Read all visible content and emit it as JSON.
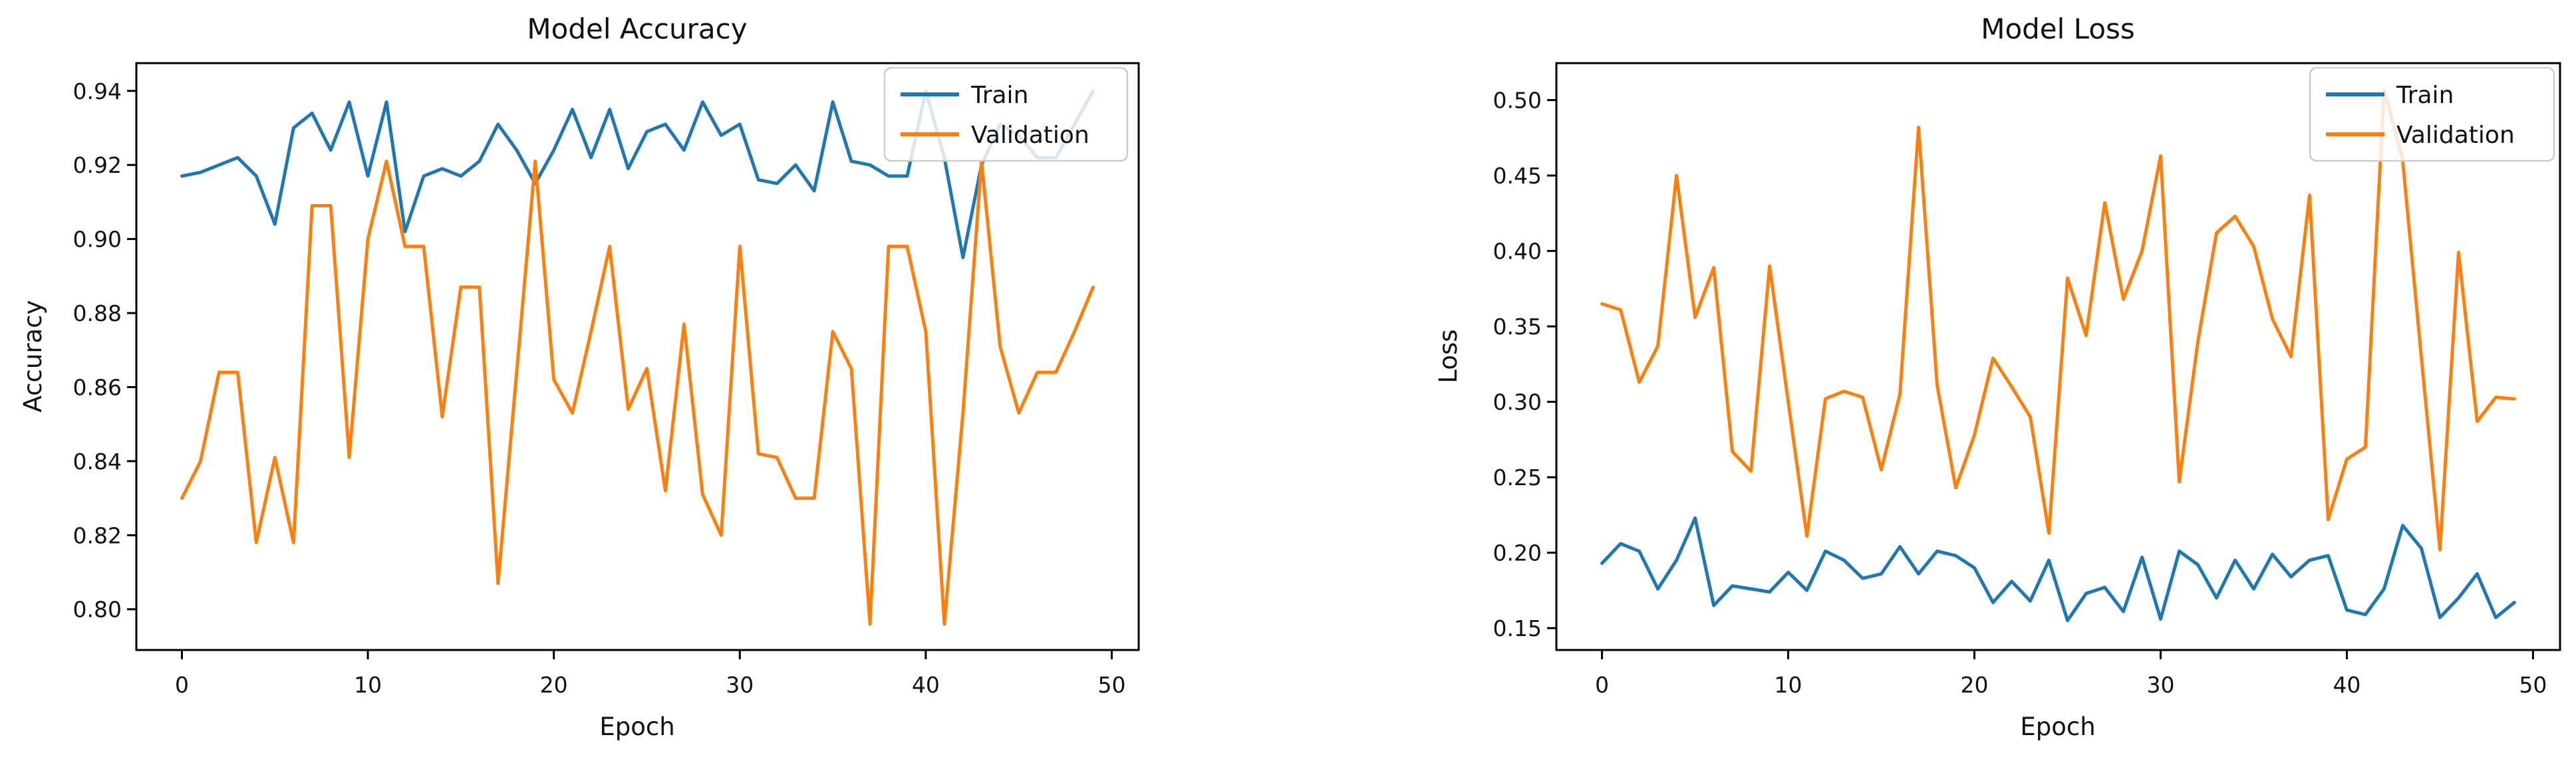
{
  "figure_titles": {
    "left": "Model Accuracy",
    "right": "Model Loss"
  },
  "chart_data": [
    {
      "type": "line",
      "title": "Model Accuracy",
      "xlabel": "Epoch",
      "ylabel": "Accuracy",
      "legend": [
        "Train",
        "Validation"
      ],
      "legend_position": "upper right",
      "grid": false,
      "xlim": [
        -2.45,
        51.45
      ],
      "ylim": [
        0.789,
        0.9475
      ],
      "x_ticks": [
        0,
        10,
        20,
        30,
        40,
        50
      ],
      "x_tick_labels": [
        "0",
        "10",
        "20",
        "30",
        "40",
        "50"
      ],
      "y_ticks": [
        0.8,
        0.82,
        0.84,
        0.86,
        0.88,
        0.9,
        0.92,
        0.94
      ],
      "y_tick_labels": [
        "0.80",
        "0.82",
        "0.84",
        "0.86",
        "0.88",
        "0.90",
        "0.92",
        "0.94"
      ],
      "series": [
        {
          "name": "Train",
          "color": "#1f77b4",
          "values": [
            0.917,
            0.918,
            0.92,
            0.922,
            0.917,
            0.904,
            0.93,
            0.934,
            0.924,
            0.937,
            0.917,
            0.937,
            0.902,
            0.917,
            0.919,
            0.917,
            0.921,
            0.931,
            0.924,
            0.915,
            0.924,
            0.935,
            0.922,
            0.935,
            0.919,
            0.929,
            0.931,
            0.924,
            0.937,
            0.928,
            0.931,
            0.916,
            0.915,
            0.92,
            0.913,
            0.937,
            0.921,
            0.92,
            0.917,
            0.917,
            0.94,
            0.922,
            0.895,
            0.92,
            0.931,
            0.928,
            0.922,
            0.922,
            0.931,
            0.94
          ]
        },
        {
          "name": "Validation",
          "color": "#ff7f0e",
          "values": [
            0.83,
            0.84,
            0.864,
            0.864,
            0.818,
            0.841,
            0.818,
            0.909,
            0.909,
            0.841,
            0.9,
            0.921,
            0.898,
            0.898,
            0.852,
            0.887,
            0.887,
            0.807,
            0.864,
            0.921,
            0.862,
            0.853,
            0.875,
            0.898,
            0.854,
            0.865,
            0.832,
            0.877,
            0.831,
            0.82,
            0.898,
            0.842,
            0.841,
            0.83,
            0.83,
            0.875,
            0.865,
            0.796,
            0.898,
            0.898,
            0.875,
            0.796,
            0.853,
            0.921,
            0.871,
            0.853,
            0.864,
            0.864,
            0.875,
            0.887
          ]
        }
      ]
    },
    {
      "type": "line",
      "title": "Model Loss",
      "xlabel": "Epoch",
      "ylabel": "Loss",
      "legend": [
        "Train",
        "Validation"
      ],
      "legend_position": "upper right",
      "grid": false,
      "xlim": [
        -2.45,
        51.45
      ],
      "ylim": [
        0.1355,
        0.5245
      ],
      "x_ticks": [
        0,
        10,
        20,
        30,
        40,
        50
      ],
      "x_tick_labels": [
        "0",
        "10",
        "20",
        "30",
        "40",
        "50"
      ],
      "y_ticks": [
        0.15,
        0.2,
        0.25,
        0.3,
        0.35,
        0.4,
        0.45,
        0.5
      ],
      "y_tick_labels": [
        "0.15",
        "0.20",
        "0.25",
        "0.30",
        "0.35",
        "0.40",
        "0.45",
        "0.50"
      ],
      "series": [
        {
          "name": "Train",
          "color": "#1f77b4",
          "values": [
            0.193,
            0.206,
            0.201,
            0.176,
            0.195,
            0.223,
            0.165,
            0.178,
            0.176,
            0.174,
            0.187,
            0.175,
            0.201,
            0.195,
            0.183,
            0.186,
            0.204,
            0.186,
            0.201,
            0.198,
            0.19,
            0.167,
            0.181,
            0.168,
            0.195,
            0.155,
            0.173,
            0.177,
            0.161,
            0.197,
            0.156,
            0.201,
            0.192,
            0.17,
            0.195,
            0.176,
            0.199,
            0.184,
            0.195,
            0.198,
            0.162,
            0.159,
            0.176,
            0.218,
            0.203,
            0.157,
            0.17,
            0.186,
            0.157,
            0.167
          ]
        },
        {
          "name": "Validation",
          "color": "#ff7f0e",
          "values": [
            0.365,
            0.361,
            0.313,
            0.337,
            0.45,
            0.356,
            0.389,
            0.267,
            0.254,
            0.39,
            0.3,
            0.211,
            0.302,
            0.307,
            0.303,
            0.255,
            0.305,
            0.482,
            0.311,
            0.243,
            0.278,
            0.329,
            0.31,
            0.29,
            0.213,
            0.382,
            0.344,
            0.432,
            0.368,
            0.4,
            0.463,
            0.247,
            0.34,
            0.412,
            0.423,
            0.403,
            0.355,
            0.33,
            0.437,
            0.222,
            0.262,
            0.27,
            0.507,
            0.46,
            0.33,
            0.202,
            0.399,
            0.287,
            0.303,
            0.302
          ]
        }
      ]
    }
  ]
}
